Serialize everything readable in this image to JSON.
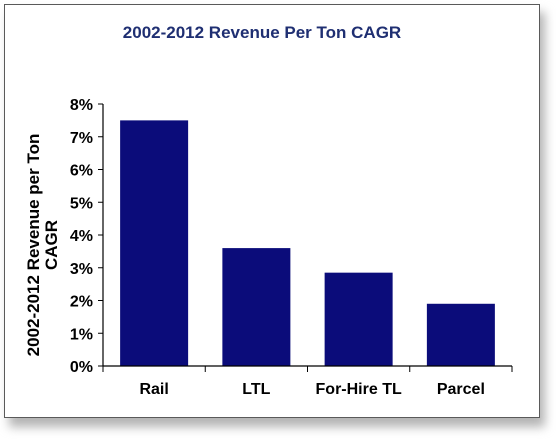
{
  "chart_data": {
    "type": "bar",
    "title": "2002-2012 Revenue Per Ton CAGR",
    "ylabel_lines": [
      "2002-2012 Revenue per Ton",
      "CAGR"
    ],
    "xlabel": "",
    "categories": [
      "Rail",
      "LTL",
      "For-Hire TL",
      "Parcel"
    ],
    "values": [
      7.5,
      3.6,
      2.85,
      1.9
    ],
    "ylim": [
      0,
      8
    ],
    "yticks": [
      0,
      1,
      2,
      3,
      4,
      5,
      6,
      7,
      8
    ],
    "ytick_labels": [
      "0%",
      "1%",
      "2%",
      "3%",
      "4%",
      "5%",
      "6%",
      "7%",
      "8%"
    ],
    "bar_color": "#0b0c7a",
    "title_color": "#1f2f72",
    "grid": false,
    "legend": "none"
  }
}
